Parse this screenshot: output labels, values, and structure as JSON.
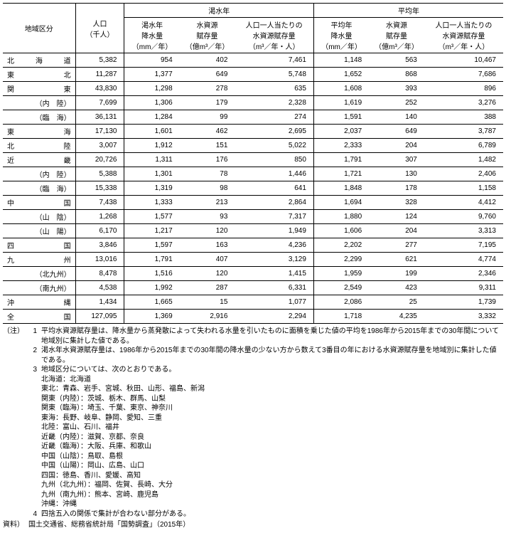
{
  "headers": {
    "region": "地域区分",
    "population": "人口\n（千人）",
    "kassui_group": "渇水年",
    "heikin_group": "平均年",
    "kassui_rain": "渇水年\n降水量\n（mm／年）",
    "kassui_res": "水資源\n賦存量\n（億m³／年）",
    "kassui_per": "人口一人当たりの\n水資源賦存量\n（m³／年・人）",
    "heikin_rain": "平均年\n降水量\n（mm／年）",
    "heikin_res": "水資源\n賦存量\n（億m³／年）",
    "heikin_per": "人口一人当たりの\n水資源賦存量\n（m³／年・人）"
  },
  "rows": [
    {
      "region": "北海道",
      "indent": false,
      "pop": "5,382",
      "kr": "954",
      "ke": "402",
      "kp": "7,461",
      "hr": "1,148",
      "he": "563",
      "hp": "10,467"
    },
    {
      "region": "東　　北",
      "indent": false,
      "pop": "11,287",
      "kr": "1,377",
      "ke": "649",
      "kp": "5,748",
      "hr": "1,652",
      "he": "868",
      "hp": "7,686"
    },
    {
      "region": "関　　東",
      "indent": false,
      "pop": "43,830",
      "kr": "1,298",
      "ke": "278",
      "kp": "635",
      "hr": "1,608",
      "he": "393",
      "hp": "896"
    },
    {
      "region": "（内　陸）",
      "indent": true,
      "pop": "7,699",
      "kr": "1,306",
      "ke": "179",
      "kp": "2,328",
      "hr": "1,619",
      "he": "252",
      "hp": "3,276"
    },
    {
      "region": "（臨　海）",
      "indent": true,
      "pop": "36,131",
      "kr": "1,284",
      "ke": "99",
      "kp": "274",
      "hr": "1,591",
      "he": "140",
      "hp": "388"
    },
    {
      "region": "東　　海",
      "indent": false,
      "pop": "17,130",
      "kr": "1,601",
      "ke": "462",
      "kp": "2,695",
      "hr": "2,037",
      "he": "649",
      "hp": "3,787"
    },
    {
      "region": "北　　陸",
      "indent": false,
      "pop": "3,007",
      "kr": "1,912",
      "ke": "151",
      "kp": "5,022",
      "hr": "2,333",
      "he": "204",
      "hp": "6,789"
    },
    {
      "region": "近　　畿",
      "indent": false,
      "pop": "20,726",
      "kr": "1,311",
      "ke": "176",
      "kp": "850",
      "hr": "1,791",
      "he": "307",
      "hp": "1,482"
    },
    {
      "region": "（内　陸）",
      "indent": true,
      "pop": "5,388",
      "kr": "1,301",
      "ke": "78",
      "kp": "1,446",
      "hr": "1,721",
      "he": "130",
      "hp": "2,406"
    },
    {
      "region": "（臨　海）",
      "indent": true,
      "pop": "15,338",
      "kr": "1,319",
      "ke": "98",
      "kp": "641",
      "hr": "1,848",
      "he": "178",
      "hp": "1,158"
    },
    {
      "region": "中　　国",
      "indent": false,
      "pop": "7,438",
      "kr": "1,333",
      "ke": "213",
      "kp": "2,864",
      "hr": "1,694",
      "he": "328",
      "hp": "4,412"
    },
    {
      "region": "（山　陰）",
      "indent": true,
      "pop": "1,268",
      "kr": "1,577",
      "ke": "93",
      "kp": "7,317",
      "hr": "1,880",
      "he": "124",
      "hp": "9,760"
    },
    {
      "region": "（山　陽）",
      "indent": true,
      "pop": "6,170",
      "kr": "1,217",
      "ke": "120",
      "kp": "1,949",
      "hr": "1,606",
      "he": "204",
      "hp": "3,313"
    },
    {
      "region": "四　　国",
      "indent": false,
      "pop": "3,846",
      "kr": "1,597",
      "ke": "163",
      "kp": "4,236",
      "hr": "2,202",
      "he": "277",
      "hp": "7,195"
    },
    {
      "region": "九　　州",
      "indent": false,
      "pop": "13,016",
      "kr": "1,791",
      "ke": "407",
      "kp": "3,129",
      "hr": "2,299",
      "he": "621",
      "hp": "4,774"
    },
    {
      "region": "（北九州）",
      "indent": true,
      "pop": "8,478",
      "kr": "1,516",
      "ke": "120",
      "kp": "1,415",
      "hr": "1,959",
      "he": "199",
      "hp": "2,346"
    },
    {
      "region": "（南九州）",
      "indent": true,
      "pop": "4,538",
      "kr": "1,992",
      "ke": "287",
      "kp": "6,331",
      "hr": "2,549",
      "he": "423",
      "hp": "9,311"
    },
    {
      "region": "沖　　縄",
      "indent": false,
      "pop": "1,434",
      "kr": "1,665",
      "ke": "15",
      "kp": "1,077",
      "hr": "2,086",
      "he": "25",
      "hp": "1,739"
    },
    {
      "region": "全　　国",
      "indent": false,
      "pop": "127,095",
      "kr": "1,369",
      "ke": "2,916",
      "kp": "2,294",
      "hr": "1,718",
      "he": "4,235",
      "hp": "3,332"
    }
  ],
  "notes_label": "（注）",
  "notes": [
    {
      "n": "1",
      "t": "平均水資源賦存量は、降水量から蒸発散によって失われる水量を引いたものに面積を乗じた値の平均を1986年から2015年までの30年間について地域別に集計した値である。"
    },
    {
      "n": "2",
      "t": "渇水年水資源賦存量は、1986年から2015年までの30年間の降水量の少ない方から数えて3番目の年における水資源賦存量を地域別に集計した値である。"
    },
    {
      "n": "3",
      "t": "地域区分については、次のとおりである。"
    },
    {
      "n": "4",
      "t": "四捨五入の関係で集計が合わない部分がある。"
    }
  ],
  "region_defs": "北海道：北海道\n東北：青森、岩手、宮城、秋田、山形、福島、新潟\n関東（内陸）：茨城、栃木、群馬、山梨\n関東（臨海）：埼玉、千葉、東京、神奈川\n東海：長野、岐阜、静岡、愛知、三重\n北陸：富山、石川、福井\n近畿（内陸）：滋賀、京都、奈良\n近畿（臨海）：大阪、兵庫、和歌山\n中国（山陰）：鳥取、島根\n中国（山陽）：岡山、広島、山口\n四国：徳島、香川、愛媛、高知\n九州（北九州）：福岡、佐賀、長崎、大分\n九州（南九州）：熊本、宮崎、鹿児島\n沖縄：沖縄",
  "source_label": "資料）",
  "source_text": "国土交通省、総務省統計局「国勢調査」（2015年）"
}
